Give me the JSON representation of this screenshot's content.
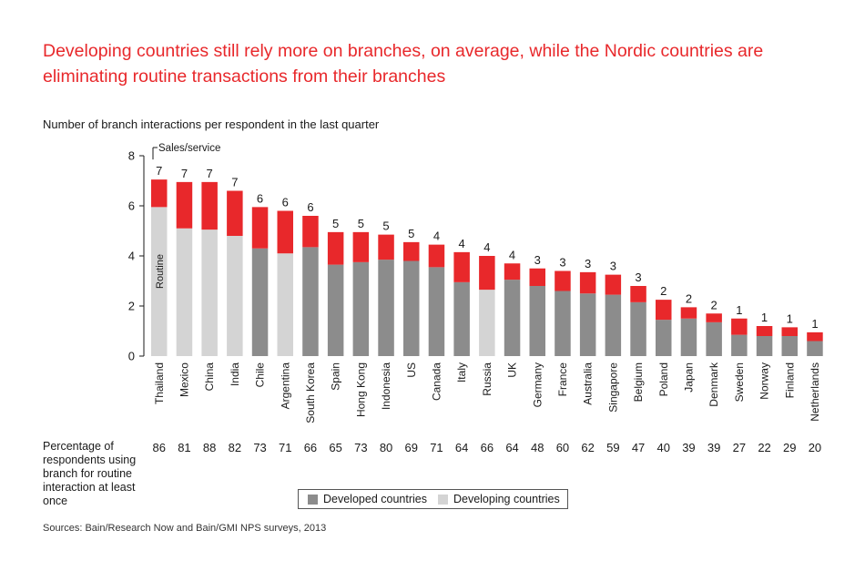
{
  "title": "Developing countries still rely more on branches, on average, while the Nordic countries are eliminating routine transactions from their branches",
  "subtitle": "Number of branch interactions per respondent in the last quarter",
  "percent_row_label": "Percentage of respondents using branch for routine interaction at least once",
  "legend": {
    "developed": "Developed countries",
    "developing": "Developing countries"
  },
  "source": "Sources: Bain/Research Now and Bain/GMI NPS surveys, 2013",
  "colors": {
    "developed": "#8c8c8c",
    "developing": "#d4d4d4",
    "sales_service": "#e8282b",
    "title": "#e8282b"
  },
  "chart_data": {
    "type": "bar",
    "stacked": true,
    "title": "Number of branch interactions per respondent in the last quarter",
    "ylim": [
      0,
      8
    ],
    "yticks": [
      0,
      2,
      4,
      6,
      8
    ],
    "segment_labels": {
      "routine": "Routine",
      "sales_service": "Sales/service"
    },
    "categories": [
      "Thailand",
      "Mexico",
      "China",
      "India",
      "Chile",
      "Argentina",
      "South Korea",
      "Spain",
      "Hong Kong",
      "Indonesia",
      "US",
      "Canada",
      "Italy",
      "Russia",
      "UK",
      "Germany",
      "France",
      "Australia",
      "Singapore",
      "Belgium",
      "Poland",
      "Japan",
      "Denmark",
      "Sweden",
      "Norway",
      "Finland",
      "Netherlands"
    ],
    "series": [
      {
        "name": "Routine",
        "values": [
          5.95,
          5.1,
          5.05,
          4.8,
          4.3,
          4.1,
          4.35,
          3.65,
          3.75,
          3.85,
          3.8,
          3.55,
          2.95,
          2.65,
          3.05,
          2.8,
          2.6,
          2.5,
          2.45,
          2.15,
          1.45,
          1.5,
          1.35,
          0.85,
          0.8,
          0.8,
          0.6
        ]
      },
      {
        "name": "Sales/service",
        "values": [
          1.1,
          1.85,
          1.9,
          1.8,
          1.65,
          1.7,
          1.25,
          1.3,
          1.2,
          1.0,
          0.75,
          0.9,
          1.2,
          1.35,
          0.65,
          0.7,
          0.8,
          0.85,
          0.8,
          0.65,
          0.8,
          0.45,
          0.35,
          0.65,
          0.4,
          0.35,
          0.35
        ]
      }
    ],
    "totals_labels": [
      "7",
      "7",
      "7",
      "7",
      "6",
      "6",
      "6",
      "5",
      "5",
      "5",
      "5",
      "4",
      "4",
      "4",
      "4",
      "3",
      "3",
      "3",
      "3",
      "3",
      "2",
      "2",
      "2",
      "1",
      "1",
      "1",
      "1"
    ],
    "group": [
      "developing",
      "developing",
      "developing",
      "developing",
      "developed",
      "developing",
      "developed",
      "developed",
      "developed",
      "developed",
      "developed",
      "developed",
      "developed",
      "developing",
      "developed",
      "developed",
      "developed",
      "developed",
      "developed",
      "developed",
      "developed",
      "developed",
      "developed",
      "developed",
      "developed",
      "developed",
      "developed"
    ],
    "percent_using_branch": [
      "86",
      "81",
      "88",
      "82",
      "73",
      "71",
      "66",
      "65",
      "73",
      "80",
      "69",
      "71",
      "64",
      "66",
      "64",
      "48",
      "60",
      "62",
      "59",
      "47",
      "40",
      "39",
      "39",
      "27",
      "22",
      "29",
      "20"
    ]
  }
}
